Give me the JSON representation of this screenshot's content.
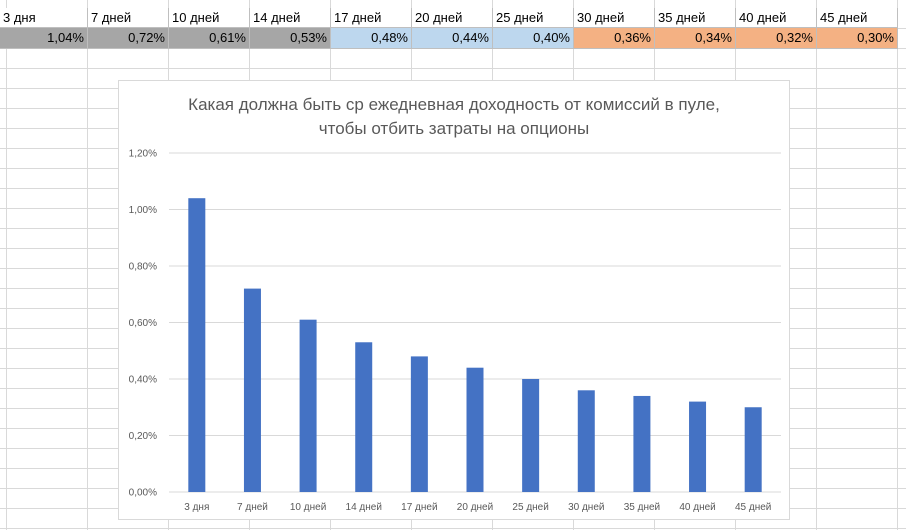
{
  "sheet": {
    "headers": [
      "3 дня",
      "7 дней",
      "10 дней",
      "14 дней",
      "17 дней",
      "20 дней",
      "25 дней",
      "30 дней",
      "35 дней",
      "40 дней",
      "45 дней"
    ],
    "values": [
      "1,04%",
      "0,72%",
      "0,61%",
      "0,53%",
      "0,48%",
      "0,44%",
      "0,40%",
      "0,36%",
      "0,34%",
      "0,32%",
      "0,30%"
    ],
    "fill_colors": [
      "#a6a6a6",
      "#a6a6a6",
      "#a6a6a6",
      "#a6a6a6",
      "#bdd7ee",
      "#bdd7ee",
      "#bdd7ee",
      "#f4b183",
      "#f4b183",
      "#f4b183",
      "#f4b183"
    ]
  },
  "chart_data": {
    "type": "bar",
    "title_line1": "Какая должна быть ср ежедневная доходность от комиссий в пуле,",
    "title_line2": "чтобы отбить затраты на опционы",
    "categories": [
      "3 дня",
      "7 дней",
      "10 дней",
      "14 дней",
      "17 дней",
      "20 дней",
      "25 дней",
      "30 дней",
      "35 дней",
      "40 дней",
      "45 дней"
    ],
    "values": [
      1.04,
      0.72,
      0.61,
      0.53,
      0.48,
      0.44,
      0.4,
      0.36,
      0.34,
      0.32,
      0.3
    ],
    "ylim": [
      0,
      1.2
    ],
    "ytick_values": [
      0,
      0.2,
      0.4,
      0.6,
      0.8,
      1.0,
      1.2
    ],
    "ytick_labels": [
      "0,00%",
      "0,20%",
      "0,40%",
      "0,60%",
      "0,80%",
      "1,00%",
      "1,20%"
    ],
    "grid": true,
    "bar_color": "#4472c4",
    "grid_color": "#d9d9d9",
    "label_color": "#595959"
  }
}
